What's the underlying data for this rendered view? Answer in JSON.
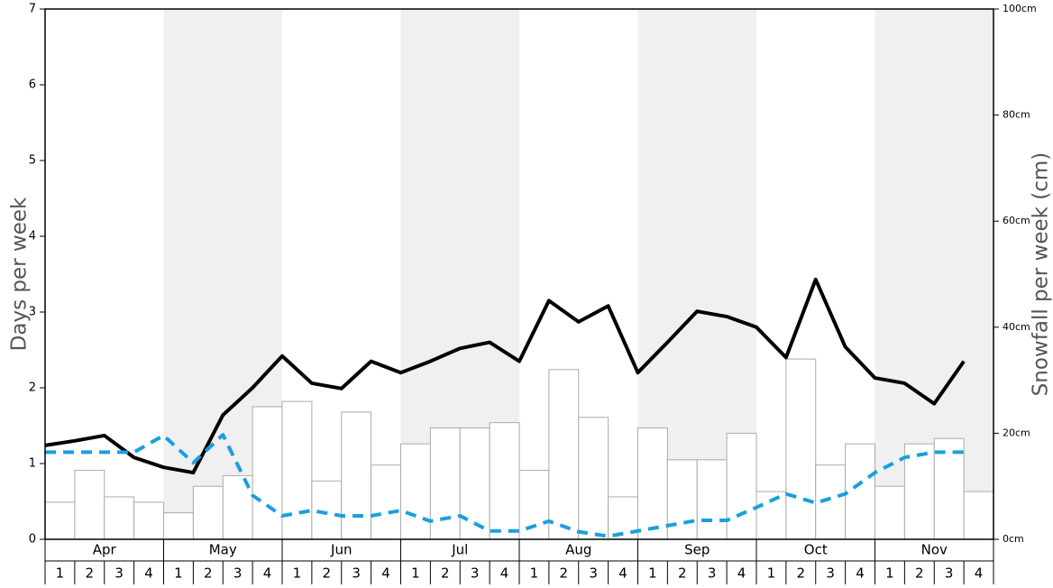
{
  "chart_data": {
    "type": "bar-line",
    "y_label": "Days per week",
    "y2_label": "Snowfall per week (cm)",
    "months": [
      "Apr",
      "May",
      "Jun",
      "Jul",
      "Aug",
      "Sep",
      "Oct",
      "Nov"
    ],
    "shaded_months": [
      false,
      true,
      false,
      true,
      false,
      true,
      false,
      true
    ],
    "categories": [
      "1",
      "2",
      "3",
      "4",
      "1",
      "2",
      "3",
      "4",
      "1",
      "2",
      "3",
      "4",
      "1",
      "2",
      "3",
      "4",
      "1",
      "2",
      "3",
      "4",
      "1",
      "2",
      "3",
      "4",
      "1",
      "2",
      "3",
      "4",
      "1",
      "2",
      "3",
      "4"
    ],
    "ylim": [
      0,
      7
    ],
    "yticks": [
      0,
      1,
      2,
      3,
      4,
      5,
      6,
      7
    ],
    "y2lim": [
      0,
      100
    ],
    "y2ticks": [
      {
        "value": 0,
        "label": "0cm"
      },
      {
        "value": 20,
        "label": "20cm"
      },
      {
        "value": 40,
        "label": "40cm"
      },
      {
        "value": 60,
        "label": "60cm"
      },
      {
        "value": 80,
        "label": "80cm"
      },
      {
        "value": 100,
        "label": "100cm"
      }
    ],
    "series": [
      {
        "kind": "bar",
        "axis": "y2",
        "color": "#ffffff",
        "edge": "#aaaaaa",
        "values": [
          7,
          13,
          8,
          7,
          5,
          10,
          12,
          25,
          26,
          11,
          24,
          14,
          18,
          21,
          21,
          22,
          13,
          32,
          23,
          8,
          21,
          15,
          15,
          20,
          9,
          34,
          14,
          18,
          10,
          18,
          19,
          9
        ]
      },
      {
        "kind": "line",
        "color": "#000000",
        "dashed": false,
        "values": [
          1.24,
          1.3,
          1.37,
          1.08,
          0.95,
          0.88,
          1.64,
          2.0,
          2.42,
          2.06,
          1.99,
          2.35,
          2.2,
          2.35,
          2.52,
          2.6,
          2.35,
          3.15,
          2.87,
          3.08,
          2.2,
          2.6,
          3.01,
          2.94,
          2.8,
          2.4,
          3.43,
          2.54,
          2.13,
          2.06,
          1.79,
          2.35
        ]
      },
      {
        "kind": "line",
        "color": "#1a9fe0",
        "dashed": true,
        "values": [
          1.15,
          1.15,
          1.15,
          1.15,
          1.37,
          1.01,
          1.38,
          0.58,
          0.31,
          0.38,
          0.31,
          0.31,
          0.38,
          0.24,
          0.31,
          0.11,
          0.11,
          0.24,
          0.1,
          0.04,
          0.11,
          0.18,
          0.25,
          0.25,
          0.42,
          0.6,
          0.48,
          0.6,
          0.88,
          1.08,
          1.15,
          1.15
        ]
      }
    ]
  }
}
